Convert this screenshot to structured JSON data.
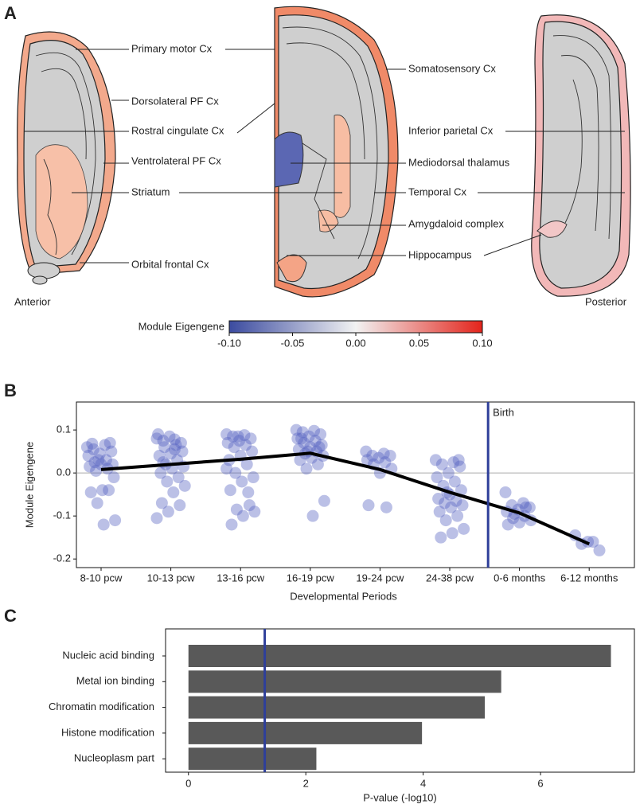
{
  "panel_labels": [
    "A",
    "B",
    "C"
  ],
  "brain_map": {
    "labels": [
      "Primary motor Cx",
      "Dorsolateral PF Cx",
      "Rostral cingulate Cx",
      "Ventrolateral PF Cx",
      "Striatum",
      "Orbital frontal Cx",
      "Somatosensory Cx",
      "Mediodorsal thalamus",
      "Amygdaloid complex",
      "Hippocampus",
      "Inferior parietal Cx",
      "Temporal Cx"
    ],
    "anterior": "Anterior",
    "posterior": "Posterior"
  },
  "chart_data": [
    {
      "type": "colorbar",
      "title": "Module Eigengene",
      "xlim": [
        -0.1,
        0.1
      ],
      "xticks": [
        {
          "value": -0.1,
          "label": "-0.10"
        },
        -0.05,
        {
          "value": 0,
          "label": "0.00"
        },
        0.05,
        {
          "value": 0.1,
          "label": "0.10"
        }
      ],
      "colors": [
        "#3b4ba0",
        "#f2f2f2",
        "#e3241b"
      ]
    },
    {
      "type": "strip",
      "ylabel": "Module Eigengene",
      "xlabel": "Developmental Periods",
      "categories": [
        "8-10 pcw",
        "10-13 pcw",
        "13-16 pcw",
        "16-19 pcw",
        "19-24 pcw",
        "24-38 pcw",
        "0-6 months",
        "6-12 months"
      ],
      "points": [
        [
          0.06,
          0.065,
          0.055,
          0.05,
          0.045,
          0.04,
          0.03,
          0.025,
          0.02,
          0.02,
          0.015,
          0.01,
          0.005,
          -0.01,
          -0.04,
          -0.045,
          -0.04,
          -0.07,
          -0.11,
          -0.12,
          0.068,
          0.07,
          0.03
        ],
        [
          0.08,
          0.078,
          0.075,
          0.07,
          0.085,
          0.09,
          0.065,
          0.06,
          0.05,
          0.045,
          0.04,
          0.03,
          0.02,
          0.015,
          0.01,
          0.0,
          -0.01,
          -0.02,
          -0.03,
          -0.045,
          -0.07,
          -0.075,
          -0.09,
          -0.105,
          0.055,
          0.025
        ],
        [
          0.09,
          0.088,
          0.085,
          0.08,
          0.075,
          0.07,
          0.065,
          0.06,
          0.05,
          0.04,
          0.03,
          0.02,
          0.0,
          -0.01,
          -0.02,
          -0.04,
          -0.045,
          -0.085,
          -0.09,
          -0.1,
          -0.12,
          -0.075,
          0.085,
          0.01
        ],
        [
          0.1,
          0.098,
          0.095,
          0.09,
          0.085,
          0.08,
          0.075,
          0.07,
          0.065,
          0.06,
          0.055,
          0.05,
          0.045,
          0.04,
          0.035,
          0.03,
          0.02,
          0.01,
          -0.065,
          -0.1,
          0.08,
          0.06,
          0.05
        ],
        [
          0.05,
          0.045,
          0.04,
          0.04,
          0.035,
          0.03,
          0.025,
          0.02,
          0.01,
          0.0,
          -0.075,
          -0.08
        ],
        [
          0.03,
          0.025,
          0.02,
          0.015,
          0.0,
          -0.01,
          -0.02,
          -0.03,
          -0.04,
          -0.05,
          -0.06,
          -0.065,
          -0.07,
          -0.075,
          -0.08,
          -0.09,
          -0.1,
          -0.11,
          -0.13,
          -0.14,
          -0.15,
          0.03,
          -0.045
        ],
        [
          -0.045,
          -0.07,
          -0.075,
          -0.08,
          -0.085,
          -0.09,
          -0.1,
          -0.105,
          -0.11,
          -0.115,
          -0.12,
          -0.08,
          -0.095
        ],
        [
          -0.145,
          -0.16,
          -0.165,
          -0.18,
          -0.16
        ]
      ],
      "point_color": "#5462c0",
      "trend": [
        0.008,
        0.02,
        0.032,
        0.046,
        0.008,
        -0.045,
        -0.093,
        -0.165
      ],
      "ylim": [
        -0.22,
        0.165
      ],
      "yticks": [
        -0.2,
        -0.1,
        {
          "value": 0,
          "label": "0.0"
        },
        0.1
      ],
      "vline": {
        "label": "Birth",
        "x": 5.55,
        "color": "#2e3f9a"
      }
    },
    {
      "type": "hbar",
      "xlabel": "P-value (-log10)",
      "categories": [
        "Nucleic acid binding",
        "Metal ion binding",
        "Chromatin modification",
        "Histone modification",
        "Nucleoplasm part"
      ],
      "values": [
        7.2,
        5.33,
        5.05,
        3.98,
        2.18
      ],
      "color": "#595959",
      "xlim": [
        -0.39,
        7.6
      ],
      "xticks": [
        0,
        2,
        4,
        6
      ],
      "vline": 1.3,
      "vline_color": "#2e3f9a"
    }
  ]
}
